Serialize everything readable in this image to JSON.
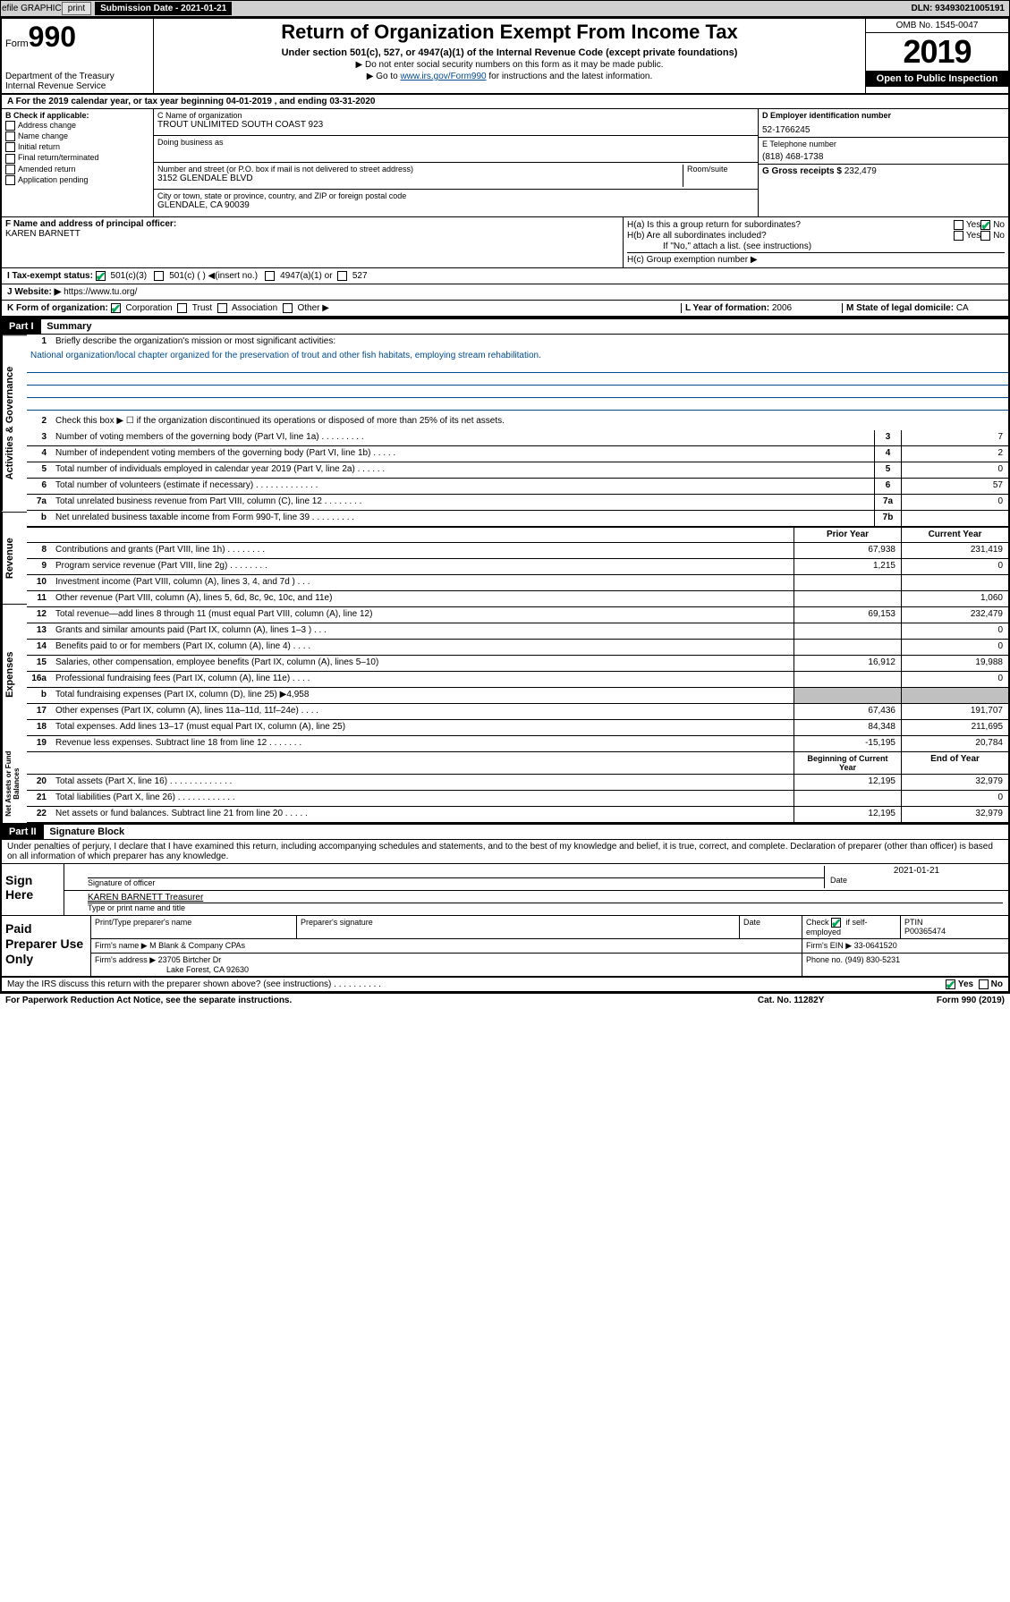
{
  "topbar": {
    "efile": "efile GRAPHIC",
    "print": "print",
    "submission": "Submission Date - 2021-01-21",
    "dln": "DLN: 93493021005191"
  },
  "header": {
    "form": "Form",
    "form_no": "990",
    "dept": "Department of the Treasury\nInternal Revenue Service",
    "title": "Return of Organization Exempt From Income Tax",
    "sub": "Under section 501(c), 527, or 4947(a)(1) of the Internal Revenue Code (except private foundations)",
    "note1": "▶ Do not enter social security numbers on this form as it may be made public.",
    "note2_pre": "▶ Go to ",
    "note2_link": "www.irs.gov/Form990",
    "note2_post": " for instructions and the latest information.",
    "omb": "OMB No. 1545-0047",
    "year": "2019",
    "open": "Open to Public Inspection"
  },
  "row_a": "A For the 2019 calendar year, or tax year beginning 04-01-2019    , and ending 03-31-2020",
  "box_b": {
    "title": "B Check if applicable:",
    "items": [
      "Address change",
      "Name change",
      "Initial return",
      "Final return/terminated",
      "Amended return",
      "Application pending"
    ]
  },
  "box_c": {
    "name_lbl": "C Name of organization",
    "name": "TROUT UNLIMITED SOUTH COAST 923",
    "dba_lbl": "Doing business as",
    "addr_lbl": "Number and street (or P.O. box if mail is not delivered to street address)",
    "room_lbl": "Room/suite",
    "addr": "3152 GLENDALE BLVD",
    "city_lbl": "City or town, state or province, country, and ZIP or foreign postal code",
    "city": "GLENDALE, CA  90039"
  },
  "box_d": {
    "lbl": "D Employer identification number",
    "val": "52-1766245"
  },
  "box_e": {
    "lbl": "E Telephone number",
    "val": "(818) 468-1738"
  },
  "box_g": {
    "lbl": "G Gross receipts $",
    "val": "232,479"
  },
  "box_f": {
    "lbl": "F  Name and address of principal officer:",
    "val": "KAREN BARNETT"
  },
  "box_h": {
    "a": "H(a)  Is this a group return for subordinates?",
    "b": "H(b)  Are all subordinates included?",
    "b_note": "If \"No,\" attach a list. (see instructions)",
    "c": "H(c)  Group exemption number ▶",
    "yes": "Yes",
    "no": "No"
  },
  "tax_status": {
    "lbl": "I   Tax-exempt status:",
    "opt1": "501(c)(3)",
    "opt2": "501(c) (  ) ◀(insert no.)",
    "opt3": "4947(a)(1) or",
    "opt4": "527"
  },
  "website": {
    "lbl": "J   Website: ▶",
    "val": "https://www.tu.org/"
  },
  "kform": {
    "lbl": "K Form of organization:",
    "opts": [
      "Corporation",
      "Trust",
      "Association",
      "Other ▶"
    ],
    "l_lbl": "L Year of formation:",
    "l_val": "2006",
    "m_lbl": "M State of legal domicile:",
    "m_val": "CA"
  },
  "part1": {
    "header": "Part I",
    "title": "Summary"
  },
  "mission": {
    "lbl": "Briefly describe the organization's mission or most significant activities:",
    "text": "National organization/local chapter organized for the preservation of trout and other fish habitats, employing stream rehabilitation."
  },
  "lines_gov": [
    {
      "n": "2",
      "d": "Check this box ▶ ☐  if the organization discontinued its operations or disposed of more than 25% of its net assets."
    },
    {
      "n": "3",
      "d": "Number of voting members of the governing body (Part VI, line 1a)  .   .   .   .   .   .   .   .   .",
      "c": "3",
      "v": "7"
    },
    {
      "n": "4",
      "d": "Number of independent voting members of the governing body (Part VI, line 1b)  .   .   .   .   .",
      "c": "4",
      "v": "2"
    },
    {
      "n": "5",
      "d": "Total number of individuals employed in calendar year 2019 (Part V, line 2a)  .   .   .   .   .   .",
      "c": "5",
      "v": "0"
    },
    {
      "n": "6",
      "d": "Total number of volunteers (estimate if necessary)  .   .   .   .   .   .   .   .   .   .   .   .   .",
      "c": "6",
      "v": "57"
    },
    {
      "n": "7a",
      "d": "Total unrelated business revenue from Part VIII, column (C), line 12  .   .   .   .   .   .   .   .",
      "c": "7a",
      "v": "0"
    },
    {
      "n": "b",
      "d": "Net unrelated business taxable income from Form 990-T, line 39   .   .   .   .   .   .   .   .   .",
      "c": "7b",
      "v": ""
    }
  ],
  "rev_header": {
    "prior": "Prior Year",
    "current": "Current Year"
  },
  "lines_rev": [
    {
      "n": "8",
      "d": "Contributions and grants (Part VIII, line 1h)   .   .   .   .   .   .   .   .",
      "p": "67,938",
      "c": "231,419"
    },
    {
      "n": "9",
      "d": "Program service revenue (Part VIII, line 2g)   .   .   .   .   .   .   .   .",
      "p": "1,215",
      "c": "0"
    },
    {
      "n": "10",
      "d": "Investment income (Part VIII, column (A), lines 3, 4, and 7d )   .   .   .",
      "p": "",
      "c": ""
    },
    {
      "n": "11",
      "d": "Other revenue (Part VIII, column (A), lines 5, 6d, 8c, 9c, 10c, and 11e)",
      "p": "",
      "c": "1,060"
    },
    {
      "n": "12",
      "d": "Total revenue—add lines 8 through 11 (must equal Part VIII, column (A), line 12)",
      "p": "69,153",
      "c": "232,479"
    }
  ],
  "lines_exp": [
    {
      "n": "13",
      "d": "Grants and similar amounts paid (Part IX, column (A), lines 1–3 )   .   .   .",
      "p": "",
      "c": "0"
    },
    {
      "n": "14",
      "d": "Benefits paid to or for members (Part IX, column (A), line 4)   .   .   .   .",
      "p": "",
      "c": "0"
    },
    {
      "n": "15",
      "d": "Salaries, other compensation, employee benefits (Part IX, column (A), lines 5–10)",
      "p": "16,912",
      "c": "19,988"
    },
    {
      "n": "16a",
      "d": "Professional fundraising fees (Part IX, column (A), line 11e)   .   .   .   .",
      "p": "",
      "c": "0"
    },
    {
      "n": "b",
      "d": "Total fundraising expenses (Part IX, column (D), line 25) ▶4,958",
      "shade": true
    },
    {
      "n": "17",
      "d": "Other expenses (Part IX, column (A), lines 11a–11d, 11f–24e)   .   .   .   .",
      "p": "67,436",
      "c": "191,707"
    },
    {
      "n": "18",
      "d": "Total expenses. Add lines 13–17 (must equal Part IX, column (A), line 25)",
      "p": "84,348",
      "c": "211,695"
    },
    {
      "n": "19",
      "d": "Revenue less expenses. Subtract line 18 from line 12   .   .   .   .   .   .   .",
      "p": "-15,195",
      "c": "20,784"
    }
  ],
  "net_header": {
    "begin": "Beginning of Current Year",
    "end": "End of Year"
  },
  "lines_net": [
    {
      "n": "20",
      "d": "Total assets (Part X, line 16)   .   .   .   .   .   .   .   .   .   .   .   .   .",
      "p": "12,195",
      "c": "32,979"
    },
    {
      "n": "21",
      "d": "Total liabilities (Part X, line 26)   .   .   .   .   .   .   .   .   .   .   .   .",
      "p": "",
      "c": "0"
    },
    {
      "n": "22",
      "d": "Net assets or fund balances. Subtract line 21 from line 20   .   .   .   .   .",
      "p": "12,195",
      "c": "32,979"
    }
  ],
  "part2": {
    "header": "Part II",
    "title": "Signature Block"
  },
  "perjury": "Under penalties of perjury, I declare that I have examined this return, including accompanying schedules and statements, and to the best of my knowledge and belief, it is true, correct, and complete. Declaration of preparer (other than officer) is based on all information of which preparer has any knowledge.",
  "sign": {
    "here": "Sign Here",
    "sig_officer": "Signature of officer",
    "date": "2021-01-21",
    "date_lbl": "Date",
    "name": "KAREN BARNETT  Treasurer",
    "name_lbl": "Type or print name and title"
  },
  "prep": {
    "title": "Paid Preparer Use Only",
    "h1": "Print/Type preparer's name",
    "h2": "Preparer's signature",
    "h3": "Date",
    "check_lbl": "Check",
    "self_emp": "if self-employed",
    "ptin_lbl": "PTIN",
    "ptin": "P00365474",
    "firm_name_lbl": "Firm's name    ▶",
    "firm_name": "M Blank & Company CPAs",
    "firm_ein_lbl": "Firm's EIN ▶",
    "firm_ein": "33-0641520",
    "firm_addr_lbl": "Firm's address ▶",
    "firm_addr": "23705 Birtcher Dr",
    "firm_city": "Lake Forest, CA  92630",
    "phone_lbl": "Phone no.",
    "phone": "(949) 830-5231"
  },
  "discuss": "May the IRS discuss this return with the preparer shown above? (see instructions)    .   .   .   .   .   .   .   .   .   .",
  "footer": {
    "pra": "For Paperwork Reduction Act Notice, see the separate instructions.",
    "cat": "Cat. No. 11282Y",
    "form": "Form 990 (2019)"
  }
}
